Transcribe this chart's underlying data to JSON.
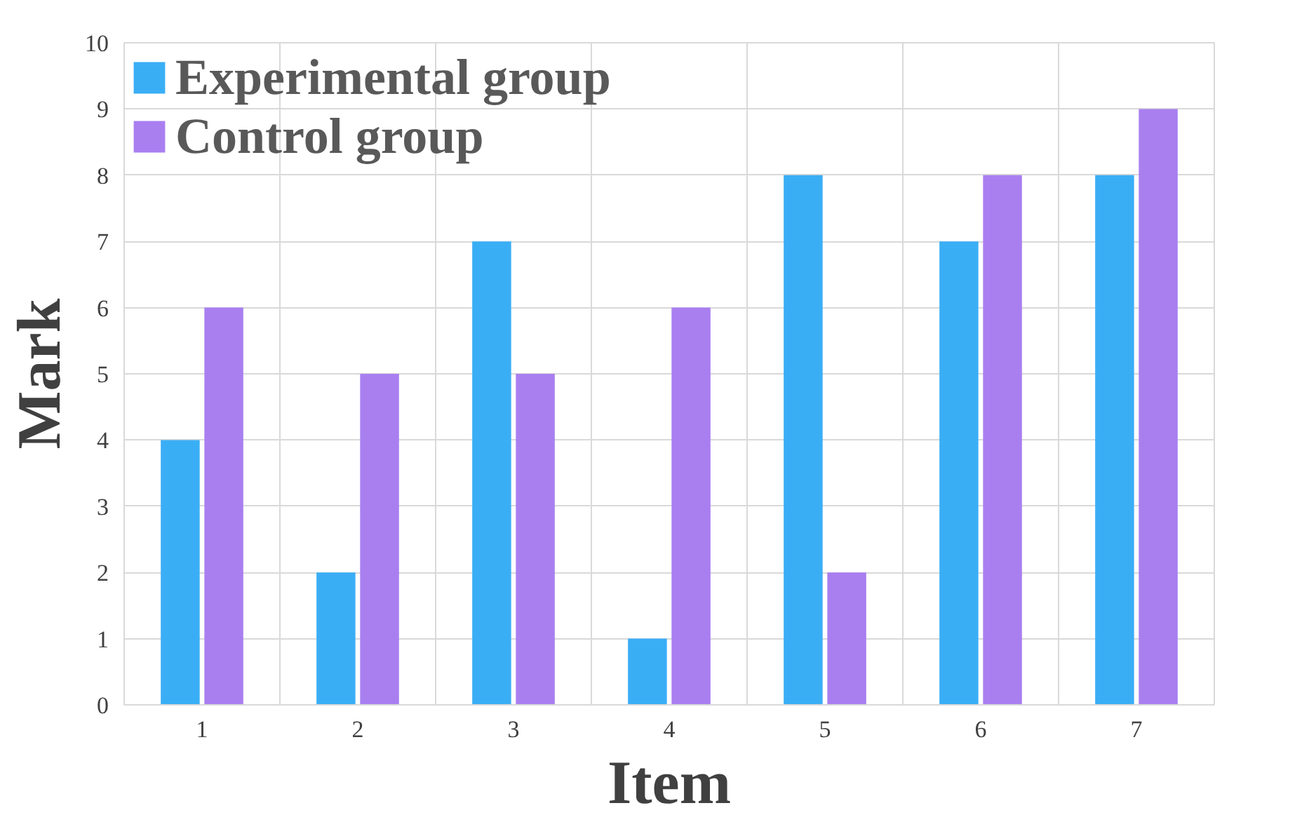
{
  "chart_data": {
    "type": "bar",
    "xlabel": "Item",
    "ylabel": "Mark",
    "categories": [
      "1",
      "2",
      "3",
      "4",
      "5",
      "6",
      "7"
    ],
    "series": [
      {
        "name": "Experimental group",
        "color": "#3aaef5",
        "values": [
          4,
          2,
          7,
          1,
          8,
          7,
          8
        ]
      },
      {
        "name": "Control group",
        "color": "#a97ff0",
        "values": [
          6,
          5,
          5,
          6,
          2,
          8,
          9
        ]
      }
    ],
    "ylim": [
      0,
      10
    ],
    "yticks": [
      0,
      1,
      2,
      3,
      4,
      5,
      6,
      7,
      8,
      9,
      10
    ],
    "grid": true,
    "legend": "top left"
  }
}
